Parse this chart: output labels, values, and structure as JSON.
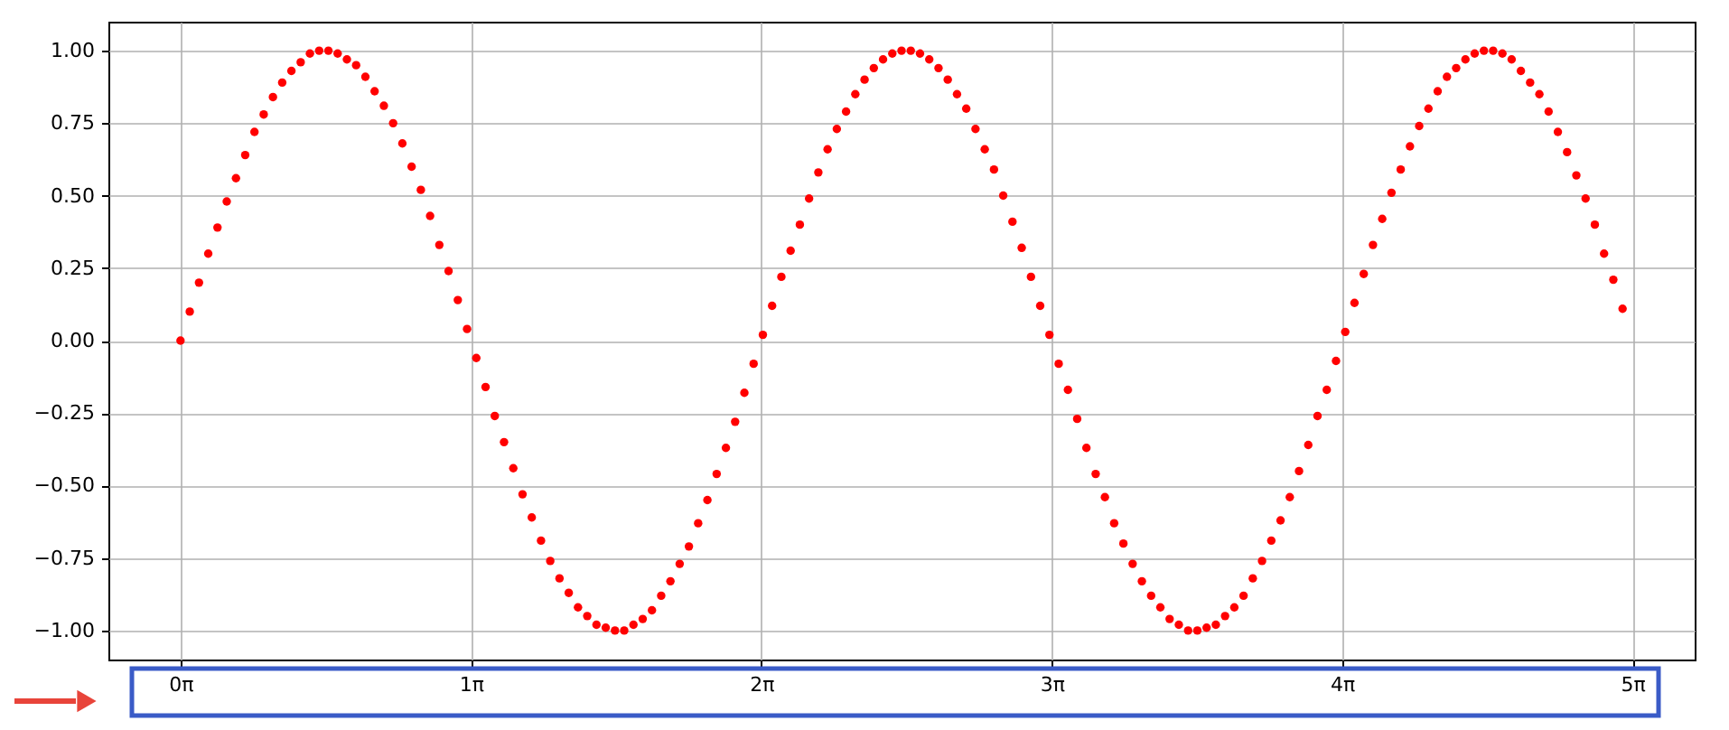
{
  "chart_data": {
    "type": "scatter",
    "x": [
      0,
      0.1,
      0.2,
      0.3,
      0.4,
      0.5,
      0.6,
      0.7,
      0.8,
      0.9,
      1.0,
      1.1,
      1.2,
      1.3,
      1.4,
      1.5,
      1.6,
      1.7,
      1.8,
      1.9,
      2.0,
      2.1,
      2.2,
      2.3,
      2.4,
      2.5,
      2.6,
      2.7,
      2.8,
      2.9,
      3.0,
      3.1,
      3.2,
      3.3,
      3.4,
      3.5,
      3.6,
      3.7,
      3.8,
      3.9,
      4.0,
      4.1,
      4.2,
      4.3,
      4.4,
      4.5,
      4.6,
      4.7,
      4.8,
      4.9,
      5.0,
      5.1,
      5.2,
      5.3,
      5.4,
      5.5,
      5.6,
      5.7,
      5.8,
      5.9,
      6.0,
      6.1,
      6.2,
      6.3,
      6.4,
      6.5,
      6.6,
      6.7,
      6.8,
      6.9,
      7.0,
      7.1,
      7.2,
      7.3,
      7.4,
      7.5,
      7.6,
      7.7,
      7.8,
      7.9,
      8.0,
      8.1,
      8.2,
      8.3,
      8.4,
      8.5,
      8.6,
      8.7,
      8.8,
      8.9,
      9.0,
      9.1,
      9.2,
      9.3,
      9.4,
      9.5,
      9.6,
      9.7,
      9.8,
      9.9,
      10.0,
      10.1,
      10.2,
      10.3,
      10.4,
      10.5,
      10.6,
      10.7,
      10.8,
      10.9,
      11.0,
      11.1,
      11.2,
      11.3,
      11.4,
      11.5,
      11.6,
      11.7,
      11.8,
      11.9,
      12.0,
      12.1,
      12.2,
      12.3,
      12.4,
      12.5,
      12.6,
      12.7,
      12.8,
      12.9,
      13.0,
      13.1,
      13.2,
      13.3,
      13.4,
      13.5,
      13.6,
      13.7,
      13.8,
      13.9,
      14.0,
      14.1,
      14.2,
      14.3,
      14.4,
      14.5,
      14.6,
      14.7,
      14.8,
      14.9,
      15.0,
      15.1,
      15.2,
      15.3,
      15.4,
      15.5,
      15.6
    ],
    "series": [
      {
        "color": "#ff0000",
        "values": [
          0,
          0.1,
          0.2,
          0.3,
          0.39,
          0.48,
          0.56,
          0.64,
          0.72,
          0.78,
          0.84,
          0.89,
          0.93,
          0.96,
          0.99,
          1.0,
          1.0,
          0.99,
          0.97,
          0.95,
          0.91,
          0.86,
          0.81,
          0.75,
          0.68,
          0.6,
          0.52,
          0.43,
          0.33,
          0.24,
          0.14,
          0.04,
          -0.06,
          -0.16,
          -0.26,
          -0.35,
          -0.44,
          -0.53,
          -0.61,
          -0.69,
          -0.76,
          -0.82,
          -0.87,
          -0.92,
          -0.95,
          -0.98,
          -0.99,
          -1.0,
          -1.0,
          -0.98,
          -0.96,
          -0.93,
          -0.88,
          -0.83,
          -0.77,
          -0.71,
          -0.63,
          -0.55,
          -0.46,
          -0.37,
          -0.28,
          -0.18,
          -0.08,
          0.02,
          0.12,
          0.22,
          0.31,
          0.4,
          0.49,
          0.58,
          0.66,
          0.73,
          0.79,
          0.85,
          0.9,
          0.94,
          0.97,
          0.99,
          1.0,
          1.0,
          0.99,
          0.97,
          0.94,
          0.9,
          0.85,
          0.8,
          0.73,
          0.66,
          0.59,
          0.5,
          0.41,
          0.32,
          0.22,
          0.12,
          0.02,
          -0.08,
          -0.17,
          -0.27,
          -0.37,
          -0.46,
          -0.54,
          -0.63,
          -0.7,
          -0.77,
          -0.83,
          -0.88,
          -0.92,
          -0.96,
          -0.98,
          -1.0,
          -1.0,
          -0.99,
          -0.98,
          -0.95,
          -0.92,
          -0.88,
          -0.82,
          -0.76,
          -0.69,
          -0.62,
          -0.54,
          -0.45,
          -0.36,
          -0.26,
          -0.17,
          -0.07,
          0.03,
          0.13,
          0.23,
          0.33,
          0.42,
          0.51,
          0.59,
          0.67,
          0.74,
          0.8,
          0.86,
          0.91,
          0.94,
          0.97,
          0.99,
          1.0,
          1.0,
          0.99,
          0.97,
          0.93,
          0.89,
          0.85,
          0.79,
          0.72,
          0.65,
          0.57,
          0.49,
          0.4,
          0.3,
          0.21,
          0.11
        ]
      }
    ],
    "xlim": [
      -0.78,
      16.38
    ],
    "ylim": [
      -1.1,
      1.1
    ],
    "xticks": [
      {
        "value": 0,
        "label": "0π"
      },
      {
        "value": 3.14159,
        "label": "1π"
      },
      {
        "value": 6.28319,
        "label": "2π"
      },
      {
        "value": 9.42478,
        "label": "3π"
      },
      {
        "value": 12.56637,
        "label": "4π"
      },
      {
        "value": 15.70796,
        "label": "5π"
      }
    ],
    "yticks": [
      {
        "value": -1,
        "label": "−1.00"
      },
      {
        "value": -0.75,
        "label": "−0.75"
      },
      {
        "value": -0.5,
        "label": "−0.50"
      },
      {
        "value": -0.25,
        "label": "−0.25"
      },
      {
        "value": 0,
        "label": "0.00"
      },
      {
        "value": 0.25,
        "label": "0.25"
      },
      {
        "value": 0.5,
        "label": "0.50"
      },
      {
        "value": 0.75,
        "label": "0.75"
      },
      {
        "value": 1,
        "label": "1.00"
      }
    ],
    "grid": true,
    "marker": "circle"
  }
}
